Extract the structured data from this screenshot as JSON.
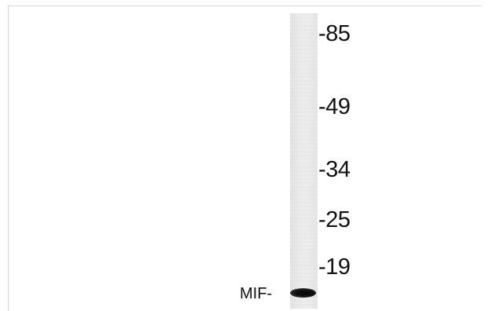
{
  "markers": [
    {
      "label": "-85",
      "kda": 85
    },
    {
      "label": "-49",
      "kda": 49
    },
    {
      "label": "-34",
      "kda": 34
    },
    {
      "label": "-25",
      "kda": 25
    },
    {
      "label": "-19",
      "kda": 19
    }
  ],
  "band": {
    "label": "MIF-",
    "color": "#0a0a0a"
  },
  "lane_color": "#e8e8e8",
  "frame_color": "#d6d6d6"
}
